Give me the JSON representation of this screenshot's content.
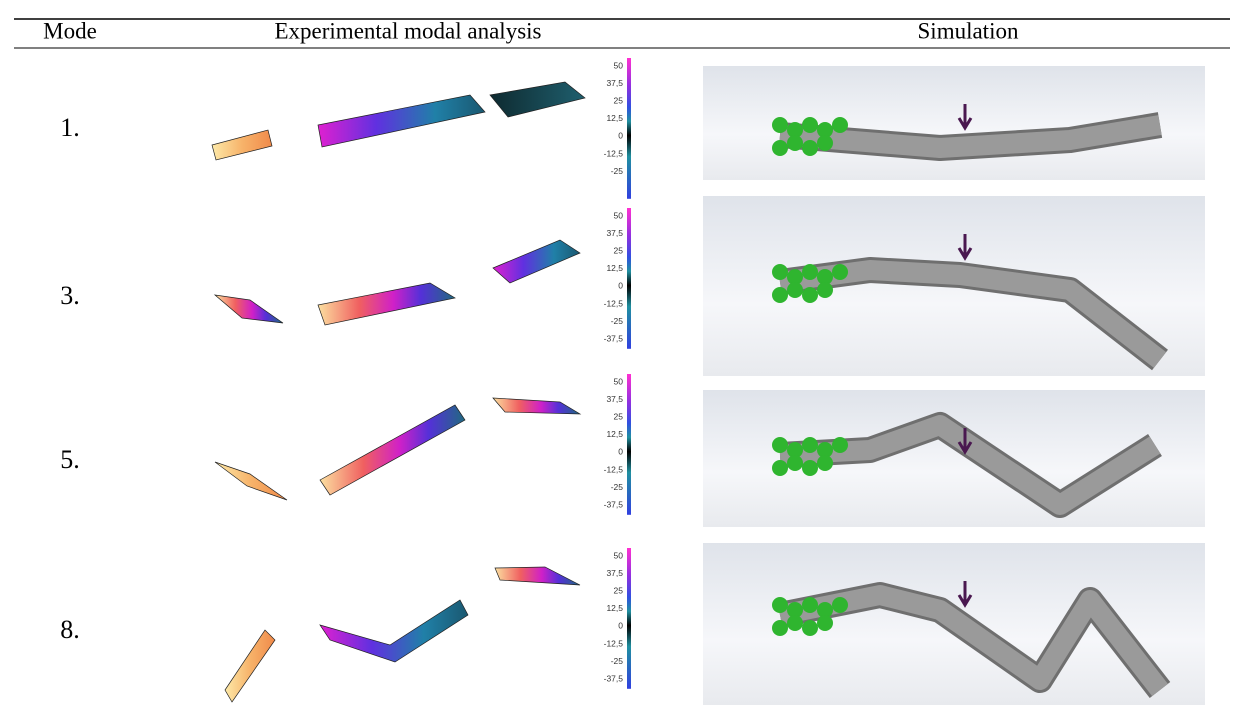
{
  "header": {
    "mode": "Mode",
    "experimental": "Experimental modal analysis",
    "simulation": "Simulation"
  },
  "rows": [
    {
      "mode": "1.",
      "scale": [
        "50",
        "37,5",
        "25",
        "12,5",
        "0",
        "-12,5",
        "-25"
      ]
    },
    {
      "mode": "3.",
      "scale": [
        "50",
        "37,5",
        "25",
        "12,5",
        "0",
        "-12,5",
        "-25",
        "-37,5"
      ]
    },
    {
      "mode": "5.",
      "scale": [
        "50",
        "37,5",
        "25",
        "12,5",
        "0",
        "-12,5",
        "-25",
        "-37,5"
      ]
    },
    {
      "mode": "8.",
      "scale": [
        "50",
        "37,5",
        "25",
        "12,5",
        "0",
        "-12,5",
        "-25",
        "-37,5"
      ]
    }
  ]
}
